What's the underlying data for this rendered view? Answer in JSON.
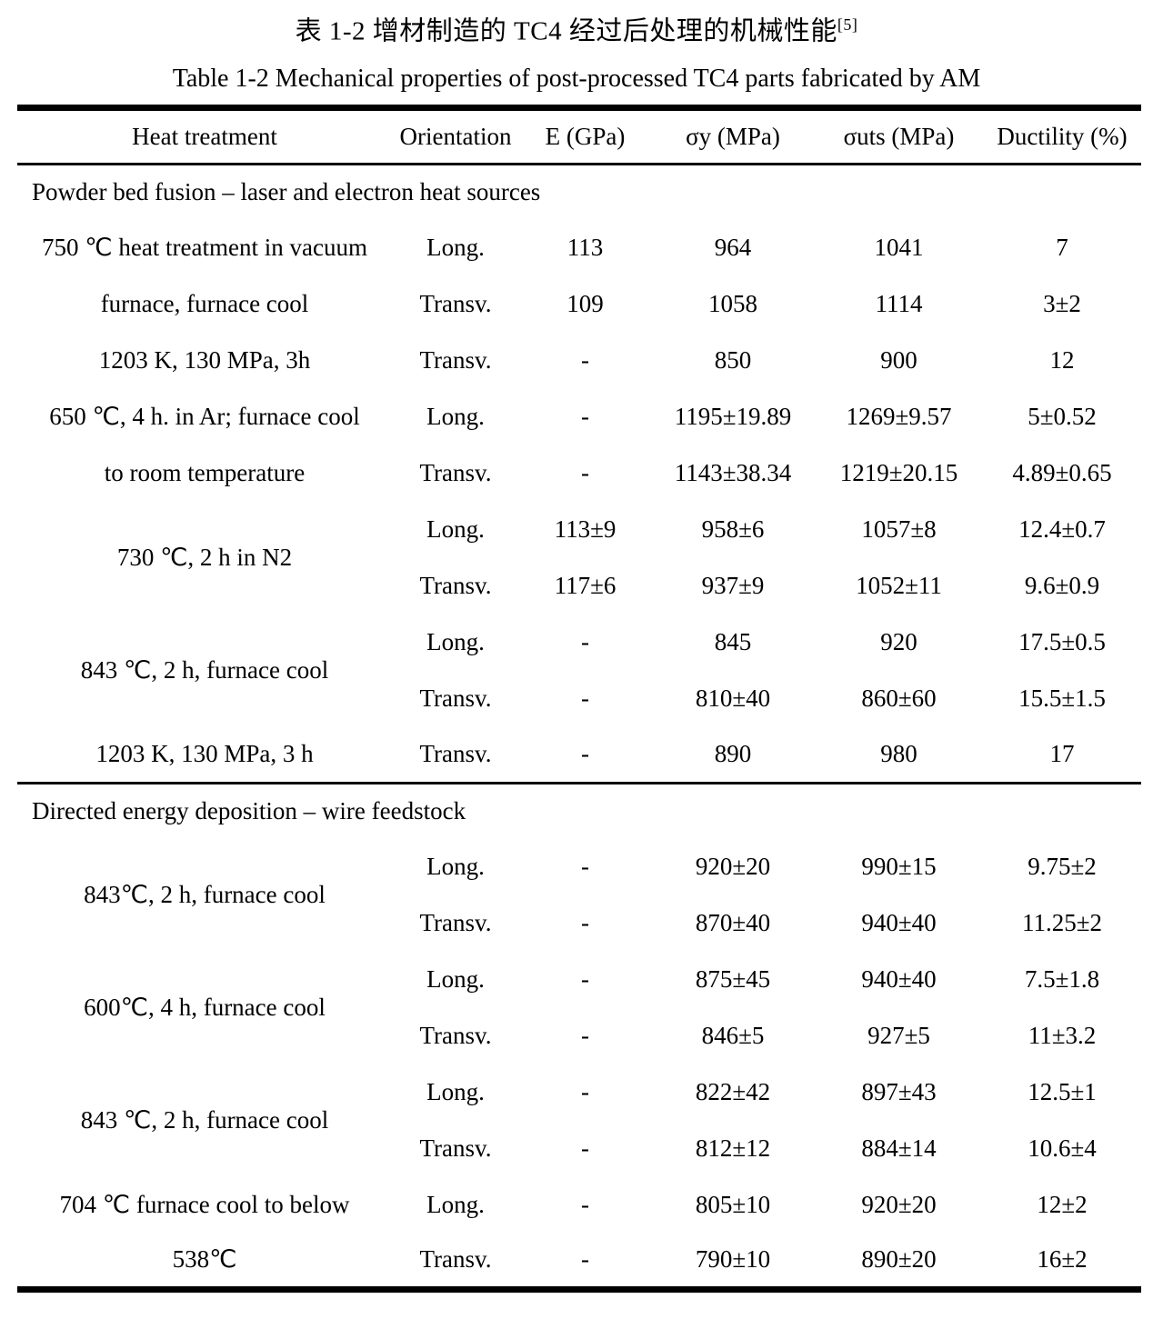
{
  "title_zh": "表 1-2 增材制造的 TC4 经过后处理的机械性能",
  "title_zh_sup": "[5]",
  "title_en": "Table 1-2 Mechanical properties of post-processed TC4 parts fabricated by AM",
  "table": {
    "columns": [
      "Heat treatment",
      "Orientation",
      "E (GPa)",
      "σy (MPa)",
      "σuts (MPa)",
      "Ductility (%)"
    ],
    "sections": [
      {
        "label": "Powder bed fusion – laser and electron heat sources",
        "rows": [
          {
            "treatment": "750 ℃ heat treatment in vacuum",
            "orientation": "Long.",
            "e": "113",
            "sy": "964",
            "suts": "1041",
            "ductility": "7"
          },
          {
            "treatment": "furnace, furnace cool",
            "orientation": "Transv.",
            "e": "109",
            "sy": "1058",
            "suts": "1114",
            "ductility": "3±2"
          },
          {
            "treatment": "1203 K, 130 MPa, 3h",
            "orientation": "Transv.",
            "e": "-",
            "sy": "850",
            "suts": "900",
            "ductility": "12"
          },
          {
            "treatment": "650 ℃, 4 h. in Ar; furnace cool",
            "orientation": "Long.",
            "e": "-",
            "sy": "1195±19.89",
            "suts": "1269±9.57",
            "ductility": "5±0.52"
          },
          {
            "treatment": "to room temperature",
            "orientation": "Transv.",
            "e": "-",
            "sy": "1143±38.34",
            "suts": "1219±20.15",
            "ductility": "4.89±0.65"
          },
          {
            "treatment": "730 ℃, 2 h in N2",
            "rowspan": 2,
            "orientation": "Long.",
            "e": "113±9",
            "sy": "958±6",
            "suts": "1057±8",
            "ductility": "12.4±0.7"
          },
          {
            "orientation": "Transv.",
            "e": "117±6",
            "sy": "937±9",
            "suts": "1052±11",
            "ductility": "9.6±0.9"
          },
          {
            "treatment": "843 ℃, 2 h, furnace cool",
            "rowspan": 2,
            "orientation": "Long.",
            "e": "-",
            "sy": "845",
            "suts": "920",
            "ductility": "17.5±0.5"
          },
          {
            "orientation": "Transv.",
            "e": "-",
            "sy": "810±40",
            "suts": "860±60",
            "ductility": "15.5±1.5"
          },
          {
            "treatment": "1203 K, 130 MPa, 3 h",
            "orientation": "Transv.",
            "e": "-",
            "sy": "890",
            "suts": "980",
            "ductility": "17"
          }
        ]
      },
      {
        "label": "Directed energy deposition – wire feedstock",
        "rows": [
          {
            "treatment": "843℃, 2 h, furnace cool",
            "rowspan": 2,
            "orientation": "Long.",
            "e": "-",
            "sy": "920±20",
            "suts": "990±15",
            "ductility": "9.75±2"
          },
          {
            "orientation": "Transv.",
            "e": "-",
            "sy": "870±40",
            "suts": "940±40",
            "ductility": "11.25±2"
          },
          {
            "treatment": "600℃, 4 h, furnace cool",
            "rowspan": 2,
            "orientation": "Long.",
            "e": "-",
            "sy": "875±45",
            "suts": "940±40",
            "ductility": "7.5±1.8"
          },
          {
            "orientation": "Transv.",
            "e": "-",
            "sy": "846±5",
            "suts": "927±5",
            "ductility": "11±3.2"
          },
          {
            "treatment": "843 ℃, 2 h, furnace cool",
            "rowspan": 2,
            "orientation": "Long.",
            "e": "-",
            "sy": "822±42",
            "suts": "897±43",
            "ductility": "12.5±1"
          },
          {
            "orientation": "Transv.",
            "e": "-",
            "sy": "812±12",
            "suts": "884±14",
            "ductility": "10.6±4"
          },
          {
            "treatment": "704 ℃ furnace cool to below",
            "orientation": "Long.",
            "e": "-",
            "sy": "805±10",
            "suts": "920±20",
            "ductility": "12±2"
          },
          {
            "treatment": "538℃",
            "orientation": "Transv.",
            "e": "-",
            "sy": "790±10",
            "suts": "890±20",
            "ductility": "16±2"
          }
        ]
      }
    ]
  }
}
